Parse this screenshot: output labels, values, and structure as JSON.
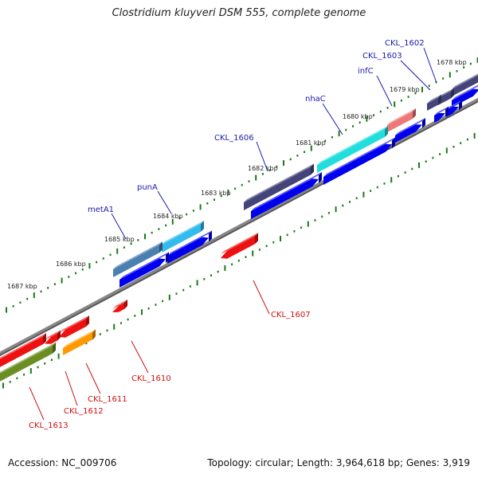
{
  "title": "Clostridium kluyveri DSM 555, complete genome",
  "footer": {
    "accession": "Accession: NC_009706",
    "topology": "Topology: circular; Length: 3,964,618 bp; Genes: 3,919"
  },
  "kbp_labels": [
    "1678 kbp",
    "1679 kbp",
    "1680 kbp",
    "1681 kbp",
    "1682 kbp",
    "1683 kbp",
    "1684 kbp",
    "1685 kbp",
    "1686 kbp",
    "1687 kbp"
  ],
  "genes_forward": [
    {
      "name": "CKL_1602",
      "color": "#44447a"
    },
    {
      "name": "CKL_1603",
      "color": "#44447a"
    },
    {
      "name": "infC",
      "color": "#ee7777"
    },
    {
      "name": "nhaC",
      "color": "#22dddd"
    },
    {
      "name": "CKL_1606",
      "color": "#44447a"
    },
    {
      "name": "punA",
      "color": "#33bbee"
    },
    {
      "name": "metA1",
      "color": "#4a7fb0"
    }
  ],
  "genes_reverse": [
    {
      "name": "CKL_1607",
      "color": "#ee1111"
    },
    {
      "name": "CKL_1610",
      "color": "#ee1111"
    },
    {
      "name": "CKL_1611",
      "color": "#ff9900"
    },
    {
      "name": "CKL_1612",
      "color": "#ee1111"
    },
    {
      "name": "CKL_1613",
      "color": "#6b8e23"
    }
  ],
  "colors": {
    "backbone": "#888888",
    "tick": "#1a7a1a",
    "cds_forward": "#0000ee",
    "cds_reverse": "#ee1111",
    "label_forward": "#1a1ab0",
    "label_reverse": "#cc1111"
  }
}
